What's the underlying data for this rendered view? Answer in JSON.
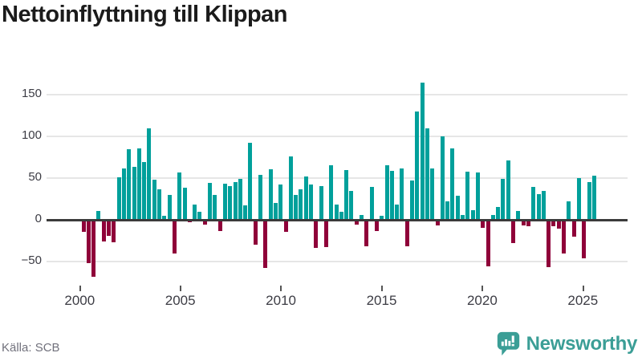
{
  "title": "Nettoinflyttning till Klippan",
  "footer": {
    "source": "Källa: SCB"
  },
  "brand": {
    "name": "Newsworthy",
    "icon": "newsworthy-speech-bubble-chart-icon"
  },
  "colors": {
    "positive_bar": "#00A09B",
    "negative_bar": "#8F0039",
    "brand_teal": "#3B9E96",
    "grid": "#E6E6E6",
    "zero_line": "#3B3B3B",
    "axis_text": "#3C3C44",
    "tick_mark": "#555555",
    "title_text": "#1B1B1B",
    "source_text": "#71717C"
  },
  "chart_data": {
    "type": "bar",
    "title": "Nettoinflyttning till Klippan",
    "x_start": "2000 Q1",
    "frequency": "quarterly",
    "x_tick_labels": [
      "2000",
      "2005",
      "2010",
      "2015",
      "2020",
      "2025"
    ],
    "y_ticks": [
      {
        "label": "150",
        "value": 150
      },
      {
        "label": "100",
        "value": 100
      },
      {
        "label": "50",
        "value": 50
      },
      {
        "label": "0",
        "value": 0
      },
      {
        "label": "−50",
        "value": -50
      }
    ],
    "ylim": [
      -75,
      175
    ],
    "grid": "horizontal",
    "legend": "none",
    "series": [
      {
        "name": "Nettoinflyttning",
        "values": [
          -14,
          -52,
          -68,
          11,
          -26,
          -19,
          -27,
          51,
          62,
          85,
          63,
          86,
          69,
          110,
          48,
          37,
          5,
          30,
          -40,
          57,
          38,
          -3,
          18,
          10,
          -6,
          44,
          30,
          -13,
          43,
          40,
          45,
          49,
          17,
          92,
          -30,
          54,
          -58,
          61,
          20,
          42,
          -14,
          76,
          30,
          37,
          52,
          42,
          -34,
          40,
          -33,
          65,
          18,
          10,
          60,
          35,
          -6,
          6,
          -32,
          39,
          -13,
          5,
          65,
          59,
          18,
          62,
          -32,
          47,
          130,
          164,
          110,
          62,
          -7,
          100,
          22,
          86,
          29,
          6,
          58,
          12,
          57,
          -10,
          -56,
          6,
          15,
          49,
          71,
          -28,
          11,
          -7,
          -8,
          39,
          31,
          35,
          -57,
          -8,
          -11,
          -40,
          22,
          -20,
          50,
          -46,
          45,
          53
        ]
      }
    ]
  }
}
